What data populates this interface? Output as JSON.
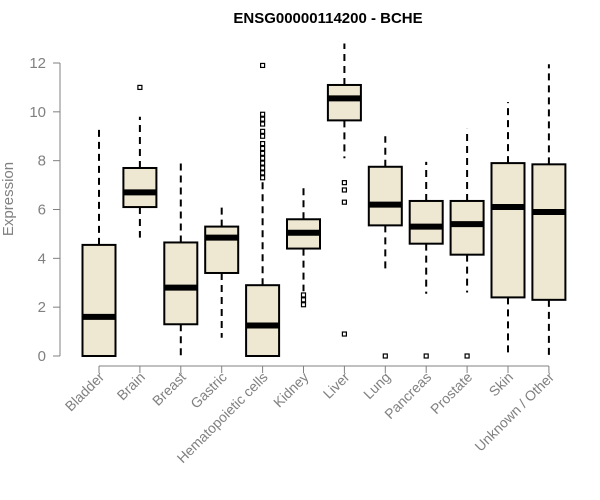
{
  "chart_data": {
    "type": "boxplot",
    "title": "ENSG00000114200 - BCHE",
    "xlabel": "",
    "ylabel": "Expression",
    "ylim": [
      0,
      12
    ],
    "yticks": [
      0,
      2,
      4,
      6,
      8,
      10,
      12
    ],
    "box_fill": "#EEE8D2",
    "categories": [
      "Bladder",
      "Brain",
      "Breast",
      "Gastric",
      "Hematopoietic cells",
      "Kidney",
      "Liver",
      "Lung",
      "Pancreas",
      "Prostate",
      "Skin",
      "Unknown / Other"
    ],
    "series": [
      {
        "name": "Bladder",
        "min": 0,
        "q1": 0,
        "median": 1.6,
        "q3": 4.55,
        "max": 9.4,
        "outliers": []
      },
      {
        "name": "Brain",
        "min": 4.85,
        "q1": 6.1,
        "median": 6.7,
        "q3": 7.7,
        "max": 9.8,
        "outliers": [
          11.0
        ]
      },
      {
        "name": "Breast",
        "min": 0,
        "q1": 1.3,
        "median": 2.8,
        "q3": 4.65,
        "max": 7.9,
        "outliers": []
      },
      {
        "name": "Gastric",
        "min": 0.75,
        "q1": 3.4,
        "median": 4.85,
        "q3": 5.3,
        "max": 6.1,
        "outliers": []
      },
      {
        "name": "Hematopoietic cells",
        "min": 0,
        "q1": 0,
        "median": 1.25,
        "q3": 2.9,
        "max": 7.2,
        "outliers": [
          7.3,
          7.5,
          7.7,
          7.9,
          8.1,
          8.3,
          8.5,
          8.7,
          9.0,
          9.2,
          9.5,
          9.7,
          9.9,
          11.9
        ]
      },
      {
        "name": "Kidney",
        "min": 2.65,
        "q1": 4.4,
        "median": 5.05,
        "q3": 5.6,
        "max": 7.05,
        "outliers": [
          2.1,
          2.3,
          2.5
        ]
      },
      {
        "name": "Liver",
        "min": 8.1,
        "q1": 9.65,
        "median": 10.55,
        "q3": 11.1,
        "max": 12.8,
        "outliers": [
          0.9,
          6.3,
          6.8,
          7.1
        ]
      },
      {
        "name": "Lung",
        "min": 3.5,
        "q1": 5.35,
        "median": 6.2,
        "q3": 7.75,
        "max": 9.0,
        "outliers": [
          0
        ]
      },
      {
        "name": "Pancreas",
        "min": 2.55,
        "q1": 4.6,
        "median": 5.3,
        "q3": 6.35,
        "max": 7.95,
        "outliers": [
          0
        ]
      },
      {
        "name": "Prostate",
        "min": 2.6,
        "q1": 4.15,
        "median": 5.4,
        "q3": 6.35,
        "max": 9.3,
        "outliers": [
          0
        ]
      },
      {
        "name": "Skin",
        "min": 0,
        "q1": 2.4,
        "median": 6.1,
        "q3": 7.9,
        "max": 10.4,
        "outliers": []
      },
      {
        "name": "Unknown / Other",
        "min": 0,
        "q1": 2.3,
        "median": 5.9,
        "q3": 7.85,
        "max": 11.95,
        "outliers": []
      }
    ]
  }
}
